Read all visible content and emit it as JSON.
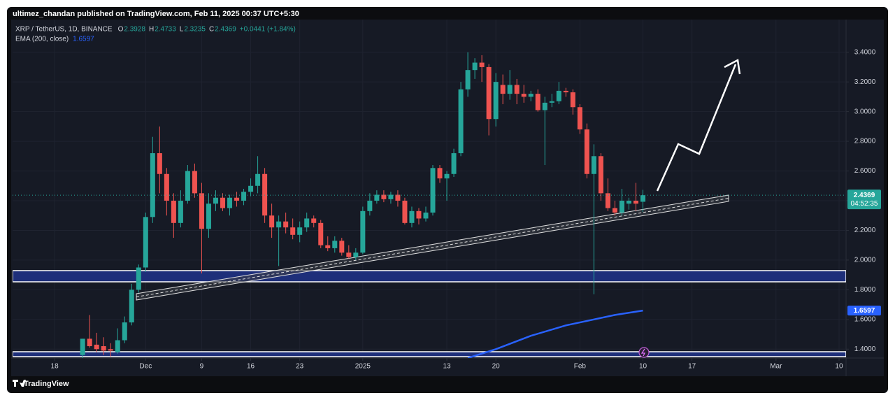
{
  "chart_data": {
    "type": "candlestick",
    "subtitle": "ultimez_chandan published on TradingView.com, Feb 11, 2025 00:37 UTC+5:30",
    "title": "XRP / TetherUS, 1D, BINANCE",
    "ohlc_legend": [
      {
        "label": "O",
        "value": 2.3928
      },
      {
        "label": "H",
        "value": 2.4733
      },
      {
        "label": "L",
        "value": 2.3235
      },
      {
        "label": "C",
        "value": 2.4369
      }
    ],
    "change": "+0.0441 (+1.84%)",
    "countdown": "04:52:35",
    "footer": "TradingView",
    "up_color": "#26a69a",
    "down_color": "#ef5350",
    "x": [
      "2024-11-22",
      "2024-11-23",
      "2024-11-24",
      "2024-11-25",
      "2024-11-26",
      "2024-11-27",
      "2024-11-28",
      "2024-11-29",
      "2024-11-30",
      "2024-12-01",
      "2024-12-02",
      "2024-12-03",
      "2024-12-04",
      "2024-12-05",
      "2024-12-06",
      "2024-12-07",
      "2024-12-08",
      "2024-12-09",
      "2024-12-10",
      "2024-12-11",
      "2024-12-12",
      "2024-12-13",
      "2024-12-14",
      "2024-12-15",
      "2024-12-16",
      "2024-12-17",
      "2024-12-18",
      "2024-12-19",
      "2024-12-20",
      "2024-12-21",
      "2024-12-22",
      "2024-12-23",
      "2024-12-24",
      "2024-12-25",
      "2024-12-26",
      "2024-12-27",
      "2024-12-28",
      "2024-12-29",
      "2024-12-30",
      "2024-12-31",
      "2025-01-01",
      "2025-01-02",
      "2025-01-03",
      "2025-01-04",
      "2025-01-05",
      "2025-01-06",
      "2025-01-07",
      "2025-01-08",
      "2025-01-09",
      "2025-01-10",
      "2025-01-11",
      "2025-01-12",
      "2025-01-13",
      "2025-01-14",
      "2025-01-15",
      "2025-01-16",
      "2025-01-17",
      "2025-01-18",
      "2025-01-19",
      "2025-01-20",
      "2025-01-21",
      "2025-01-22",
      "2025-01-23",
      "2025-01-24",
      "2025-01-25",
      "2025-01-26",
      "2025-01-27",
      "2025-01-28",
      "2025-01-29",
      "2025-01-30",
      "2025-01-31",
      "2025-02-01",
      "2025-02-02",
      "2025-02-03",
      "2025-02-04",
      "2025-02-05",
      "2025-02-06",
      "2025-02-07",
      "2025-02-08",
      "2025-02-09",
      "2025-02-10"
    ],
    "open": [
      1.36,
      1.47,
      1.43,
      1.42,
      1.4,
      1.38,
      1.46,
      1.58,
      1.8,
      1.95,
      2.29,
      2.72,
      2.58,
      2.4,
      2.25,
      2.4,
      2.6,
      2.45,
      2.21,
      2.38,
      2.42,
      2.35,
      2.42,
      2.4,
      2.46,
      2.5,
      2.58,
      2.3,
      2.22,
      2.26,
      2.22,
      2.17,
      2.22,
      2.28,
      2.25,
      2.1,
      2.08,
      2.13,
      2.05,
      2.02,
      2.05,
      2.33,
      2.4,
      2.44,
      2.41,
      2.44,
      2.4,
      2.25,
      2.33,
      2.28,
      2.32,
      2.62,
      2.55,
      2.58,
      2.72,
      3.15,
      3.28,
      3.33,
      3.3,
      2.95,
      3.18,
      3.12,
      3.18,
      3.12,
      3.1,
      3.12,
      3.01,
      3.06,
      3.07,
      3.14,
      3.13,
      3.03,
      2.88,
      2.58,
      2.7,
      2.45,
      2.35,
      2.32,
      2.38,
      2.4,
      2.3928
    ],
    "high": [
      1.47,
      1.63,
      1.51,
      1.48,
      1.44,
      1.54,
      1.62,
      1.84,
      1.97,
      2.32,
      2.83,
      2.9,
      2.62,
      2.45,
      2.47,
      2.64,
      2.65,
      2.52,
      2.45,
      2.47,
      2.45,
      2.44,
      2.46,
      2.48,
      2.55,
      2.7,
      2.62,
      2.38,
      2.3,
      2.32,
      2.28,
      2.26,
      2.32,
      2.3,
      2.27,
      2.16,
      2.16,
      2.15,
      2.1,
      2.08,
      2.36,
      2.45,
      2.47,
      2.47,
      2.46,
      2.47,
      2.42,
      2.36,
      2.35,
      2.36,
      2.64,
      2.64,
      2.6,
      2.75,
      3.2,
      3.4,
      3.36,
      3.38,
      3.32,
      3.26,
      3.25,
      3.28,
      3.22,
      3.18,
      3.14,
      3.15,
      3.1,
      3.12,
      3.2,
      3.16,
      3.15,
      3.05,
      2.92,
      2.78,
      2.72,
      2.55,
      2.4,
      2.48,
      2.42,
      2.52,
      2.4733
    ],
    "low": [
      1.34,
      1.41,
      1.38,
      1.36,
      1.35,
      1.37,
      1.44,
      1.56,
      1.78,
      1.92,
      2.25,
      2.45,
      2.3,
      2.15,
      2.22,
      2.38,
      2.42,
      1.91,
      2.15,
      2.33,
      2.33,
      2.3,
      2.36,
      2.37,
      2.43,
      2.45,
      2.25,
      2.15,
      1.96,
      2.18,
      2.14,
      2.12,
      2.19,
      2.22,
      2.08,
      2.06,
      2.05,
      2.03,
      2.01,
      2.0,
      2.04,
      2.3,
      2.38,
      2.39,
      2.38,
      2.36,
      2.24,
      2.22,
      2.24,
      2.26,
      2.3,
      2.52,
      2.4,
      2.56,
      2.7,
      3.1,
      3.22,
      3.2,
      2.84,
      2.9,
      3.05,
      3.08,
      3.05,
      3.06,
      3.07,
      3.0,
      2.64,
      3.03,
      3.05,
      3.1,
      2.98,
      2.85,
      2.55,
      1.77,
      2.4,
      2.33,
      2.3,
      2.3,
      2.34,
      2.33,
      2.3235
    ],
    "close": [
      1.47,
      1.42,
      1.4,
      1.39,
      1.39,
      1.46,
      1.58,
      1.8,
      1.95,
      2.29,
      2.72,
      2.58,
      2.4,
      2.25,
      2.4,
      2.6,
      2.45,
      2.21,
      2.38,
      2.42,
      2.35,
      2.42,
      2.4,
      2.46,
      2.5,
      2.58,
      2.3,
      2.22,
      2.26,
      2.22,
      2.17,
      2.22,
      2.28,
      2.25,
      2.1,
      2.08,
      2.13,
      2.05,
      2.02,
      2.05,
      2.33,
      2.4,
      2.44,
      2.41,
      2.44,
      2.4,
      2.25,
      2.33,
      2.28,
      2.32,
      2.62,
      2.55,
      2.58,
      2.72,
      3.15,
      3.28,
      3.33,
      3.3,
      2.95,
      3.2,
      3.12,
      3.18,
      3.12,
      3.1,
      3.12,
      3.01,
      3.06,
      3.07,
      3.14,
      3.13,
      3.03,
      2.88,
      2.58,
      2.7,
      2.45,
      2.35,
      2.32,
      2.4,
      2.4,
      2.38,
      2.4369
    ],
    "ema": {
      "name": "EMA (200, close)",
      "color": "#2962ff",
      "x": [
        "2025-01-16",
        "2025-01-20",
        "2025-01-25",
        "2025-01-30",
        "2025-02-03",
        "2025-02-06",
        "2025-02-10"
      ],
      "values": [
        1.34,
        1.4,
        1.49,
        1.56,
        1.6,
        1.63,
        1.6597
      ]
    },
    "xlim": [
      "2024-11-12",
      "2025-03-11"
    ],
    "xticks": [
      {
        "value": "2024-11-18",
        "label": "18"
      },
      {
        "value": "2024-12-01",
        "label": "Dec"
      },
      {
        "value": "2024-12-09",
        "label": "9"
      },
      {
        "value": "2024-12-16",
        "label": "16"
      },
      {
        "value": "2024-12-23",
        "label": "23"
      },
      {
        "value": "2025-01-01",
        "label": "2025"
      },
      {
        "value": "2025-01-13",
        "label": "13"
      },
      {
        "value": "2025-01-20",
        "label": "20"
      },
      {
        "value": "2025-02-01",
        "label": "Feb"
      },
      {
        "value": "2025-02-10",
        "label": "10"
      },
      {
        "value": "2025-02-17",
        "label": "17"
      },
      {
        "value": "2025-03-01",
        "label": "Mar"
      },
      {
        "value": "2025-03-10",
        "label": "10"
      }
    ],
    "ylim": [
      1.34,
      3.62
    ],
    "yticks": [
      {
        "value": 1.4,
        "label": "1.4000"
      },
      {
        "value": 1.6,
        "label": "1.6000"
      },
      {
        "value": 1.8,
        "label": "1.8000"
      },
      {
        "value": 2.0,
        "label": "2.0000"
      },
      {
        "value": 2.2,
        "label": "2.2000"
      },
      {
        "value": 2.4,
        "label": "2.4000"
      },
      {
        "value": 2.6,
        "label": "2.6000"
      },
      {
        "value": 2.8,
        "label": "2.8000"
      },
      {
        "value": 3.0,
        "label": "3.0000"
      },
      {
        "value": 3.2,
        "label": "3.2000"
      },
      {
        "value": 3.4,
        "label": "3.4000"
      }
    ],
    "grid": true
  }
}
